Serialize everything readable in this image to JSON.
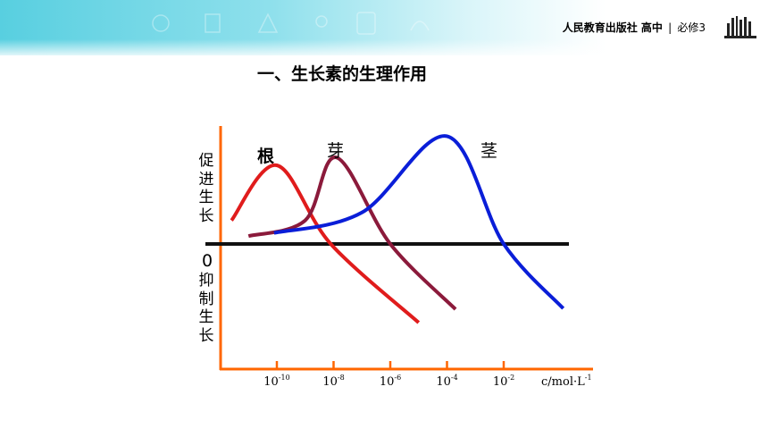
{
  "header": {
    "publisher": "人民教育出版社 高中",
    "separator": "|",
    "book": "必修3",
    "logo_icon": "bookshelf-icon",
    "band_color": "#58cfe0"
  },
  "title": "一、生长素的生理作用",
  "chart_data": {
    "type": "line",
    "y_label_top": [
      "促",
      "进",
      "生",
      "长"
    ],
    "y_label_zero": "0",
    "y_label_bottom": [
      "抑",
      "制",
      "生",
      "长"
    ],
    "x_ticks": [
      {
        "base": "10",
        "exp": "-10",
        "value": -10
      },
      {
        "base": "10",
        "exp": "-8",
        "value": -8
      },
      {
        "base": "10",
        "exp": "-6",
        "value": -6
      },
      {
        "base": "10",
        "exp": "-4",
        "value": -4
      },
      {
        "base": "10",
        "exp": "-2",
        "value": -2
      }
    ],
    "x_unit": {
      "text": "c/mol·L",
      "exp": "-1"
    },
    "x_scale": "log",
    "series": [
      {
        "name": "根",
        "color": "#e01c1c",
        "bold": true,
        "points": [
          [
            -11.6,
            0.3
          ],
          [
            -10,
            1.0
          ],
          [
            -8.1,
            0.0
          ],
          [
            -5.0,
            -1.0
          ]
        ]
      },
      {
        "name": "芽",
        "color": "#8b1a3b",
        "bold": false,
        "points": [
          [
            -11.0,
            0.1
          ],
          [
            -9.0,
            0.3
          ],
          [
            -7.9,
            1.1
          ],
          [
            -6.0,
            0.0
          ],
          [
            -3.7,
            -0.83
          ]
        ]
      },
      {
        "name": "茎",
        "color": "#0a1ed8",
        "bold": false,
        "points": [
          [
            -10.1,
            0.14
          ],
          [
            -7.0,
            0.4
          ],
          [
            -4.0,
            1.37
          ],
          [
            -2.0,
            0.0
          ],
          [
            0.1,
            -0.82
          ]
        ]
      }
    ]
  }
}
